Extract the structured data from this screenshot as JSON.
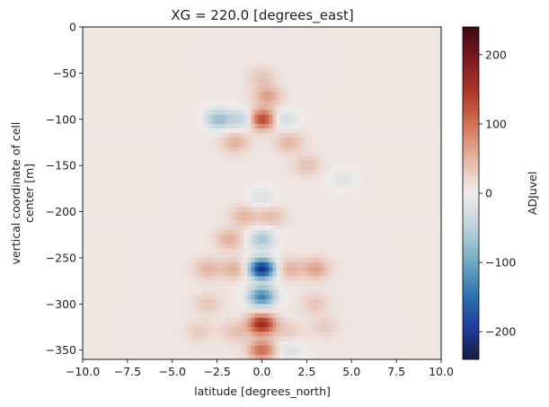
{
  "chart_data": {
    "type": "heatmap",
    "title": "XG = 220.0 [degrees_east]",
    "xlabel": "latitude [degrees_north]",
    "ylabel_lines": [
      "vertical coordinate of cell",
      "center [m]"
    ],
    "xlim": [
      -10.0,
      10.0
    ],
    "ylim": [
      -360,
      0
    ],
    "xticks": [
      -10.0,
      -7.5,
      -5.0,
      -2.5,
      0.0,
      2.5,
      5.0,
      7.5,
      10.0
    ],
    "xtick_labels": [
      "−10.0",
      "−7.5",
      "−5.0",
      "−2.5",
      "0.0",
      "2.5",
      "5.0",
      "7.5",
      "10.0"
    ],
    "yticks": [
      0,
      -50,
      -100,
      -150,
      -200,
      -250,
      -300,
      -350
    ],
    "ytick_labels": [
      "0",
      "−50",
      "−100",
      "−150",
      "−200",
      "−250",
      "−300",
      "−350"
    ],
    "colorbar": {
      "label": "ADJuvel",
      "vmin": -240,
      "vmax": 240,
      "ticks": [
        200,
        100,
        0,
        -100,
        -200
      ],
      "tick_labels": [
        "200",
        "100",
        "0",
        "−100",
        "−200"
      ],
      "colormap": "balance",
      "colors": [
        "#161d3f",
        "#1f3fa0",
        "#2f78b0",
        "#78acc6",
        "#bfd3dc",
        "#f1eceb",
        "#e4b8a6",
        "#d3775a",
        "#b13a2a",
        "#7d1a23",
        "#3d0a14"
      ]
    },
    "features": [
      {
        "lat": 0.0,
        "depth": -100,
        "value": 140
      },
      {
        "lat": 0.3,
        "depth": -75,
        "value": 60
      },
      {
        "lat": 0.0,
        "depth": -55,
        "value": 30
      },
      {
        "lat": -2.4,
        "depth": -100,
        "value": -80
      },
      {
        "lat": -1.0,
        "depth": -100,
        "value": -60
      },
      {
        "lat": 1.2,
        "depth": -100,
        "value": -40
      },
      {
        "lat": -1.5,
        "depth": -125,
        "value": 50
      },
      {
        "lat": 1.5,
        "depth": -125,
        "value": 45
      },
      {
        "lat": 2.5,
        "depth": -150,
        "value": 35
      },
      {
        "lat": 4.5,
        "depth": -165,
        "value": -25
      },
      {
        "lat": 0.0,
        "depth": -185,
        "value": -30
      },
      {
        "lat": -1.0,
        "depth": -205,
        "value": 45
      },
      {
        "lat": 0.5,
        "depth": -205,
        "value": 40
      },
      {
        "lat": -1.8,
        "depth": -230,
        "value": 50
      },
      {
        "lat": 0.0,
        "depth": -230,
        "value": -70
      },
      {
        "lat": 0.0,
        "depth": -262,
        "value": -220
      },
      {
        "lat": -3.0,
        "depth": -262,
        "value": 45
      },
      {
        "lat": 3.0,
        "depth": -262,
        "value": 60
      },
      {
        "lat": -1.5,
        "depth": -262,
        "value": 50
      },
      {
        "lat": 1.5,
        "depth": -262,
        "value": 50
      },
      {
        "lat": 0.0,
        "depth": -292,
        "value": -140
      },
      {
        "lat": -3.0,
        "depth": -300,
        "value": 30
      },
      {
        "lat": 3.0,
        "depth": -300,
        "value": 30
      },
      {
        "lat": 0.0,
        "depth": -322,
        "value": 160
      },
      {
        "lat": -1.5,
        "depth": -330,
        "value": 35
      },
      {
        "lat": 1.5,
        "depth": -330,
        "value": 25
      },
      {
        "lat": 0.0,
        "depth": -350,
        "value": 100
      },
      {
        "lat": 3.5,
        "depth": -325,
        "value": 25
      },
      {
        "lat": -3.5,
        "depth": -330,
        "value": 25
      },
      {
        "lat": 1.5,
        "depth": -350,
        "value": -30
      }
    ]
  }
}
